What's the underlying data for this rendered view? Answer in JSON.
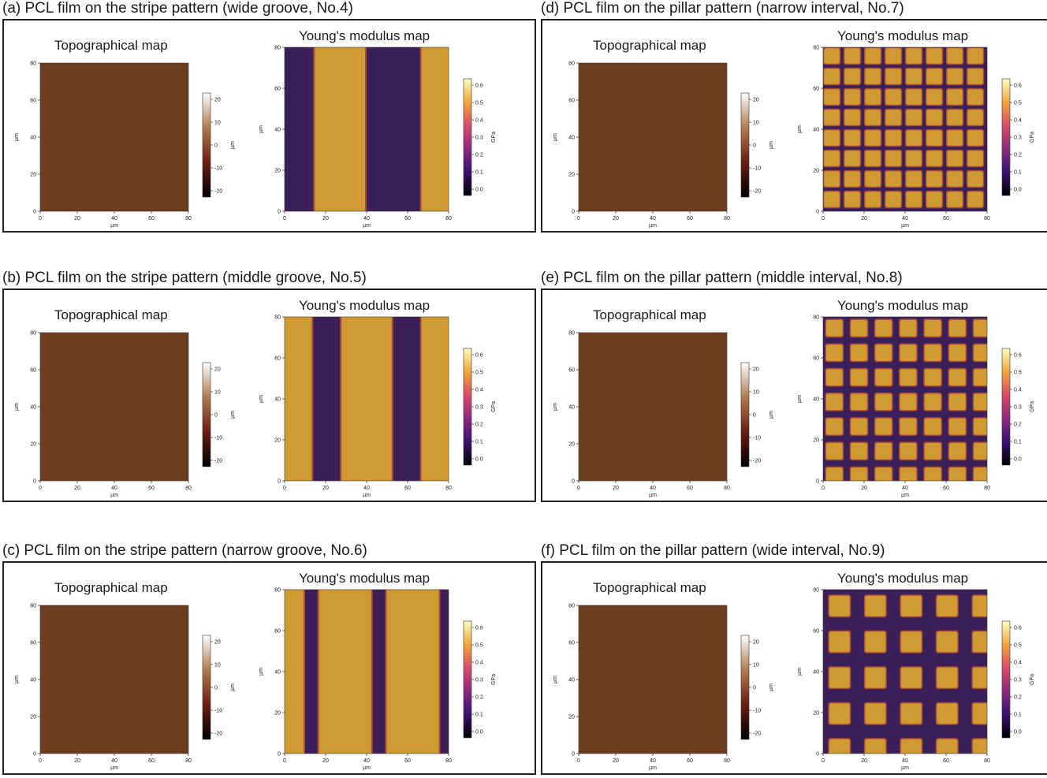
{
  "panels": [
    {
      "caption": "(a) PCL film on the stripe pattern (wide groove, No.4)",
      "pattern": "stripe",
      "variant": "wide"
    },
    {
      "caption": "(d) PCL film on the pillar pattern (narrow interval, No.7)",
      "pattern": "pillar",
      "variant": "narrow"
    },
    {
      "caption": "(b) PCL film on the stripe pattern (middle groove, No.5)",
      "pattern": "stripe",
      "variant": "middle"
    },
    {
      "caption": "(e) PCL film on the pillar pattern (middle interval, No.8)",
      "pattern": "pillar",
      "variant": "middle"
    },
    {
      "caption": "(c) PCL film on the stripe pattern (narrow groove, No.6)",
      "pattern": "stripe",
      "variant": "narrow"
    },
    {
      "caption": "(f) PCL film on the pillar pattern (wide interval, No.9)",
      "pattern": "pillar",
      "variant": "wide"
    }
  ],
  "labels": {
    "topo_title": "Topographical map",
    "modulus_title": "Young's modulus map",
    "axis_unit": "µm",
    "topo_cbar_unit": "µm",
    "modulus_cbar_unit": "GPa"
  },
  "axes": {
    "ticks": [
      "0",
      "20",
      "40",
      "60",
      "80"
    ],
    "topo_cbar_ticks": [
      "20",
      "10",
      "0",
      "-10",
      "-20"
    ],
    "modulus_cbar_ticks": [
      "0.6",
      "0.5",
      "0.4",
      "0.3",
      "0.2",
      "0.1",
      "0.0"
    ]
  },
  "colors": {
    "topo_fill": "#6e3c1e",
    "soft": "#3a1f58",
    "hard": "#d09a32",
    "edge": "#a84a36"
  }
}
